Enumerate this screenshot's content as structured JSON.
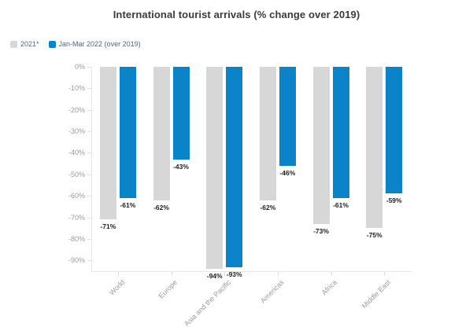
{
  "title": "International tourist arrivals (% change over 2019)",
  "chart_data": {
    "type": "bar",
    "title": "International tourist arrivals (% change over 2019)",
    "categories": [
      "World",
      "Europe",
      "Asia and the Pacific",
      "Americas",
      "Africa",
      "Middle East"
    ],
    "series": [
      {
        "name": "2021*",
        "color": "#d7d7d7",
        "values": [
          -71,
          -62,
          -94,
          -62,
          -73,
          -75
        ]
      },
      {
        "name": "Jan-Mar 2022 (over 2019)",
        "color": "#0a83c8",
        "values": [
          -61,
          -43,
          -93,
          -46,
          -61,
          -59
        ]
      }
    ],
    "value_label_suffix": "%",
    "yticks": [
      0,
      -10,
      -20,
      -30,
      -40,
      -50,
      -60,
      -70,
      -80,
      -90
    ],
    "ytick_suffix": "%",
    "ylim": [
      -95,
      0
    ],
    "grid": false,
    "legend_position": "top-left",
    "xlabel": "",
    "ylabel": ""
  },
  "colors": {
    "background": "#ffffff",
    "title_text": "#3b3b3b",
    "axis_line": "#e6e6e6",
    "axis_text": "#9a9a9a",
    "value_label_text": "#1c1c1c",
    "legend_text": "#51677a"
  }
}
